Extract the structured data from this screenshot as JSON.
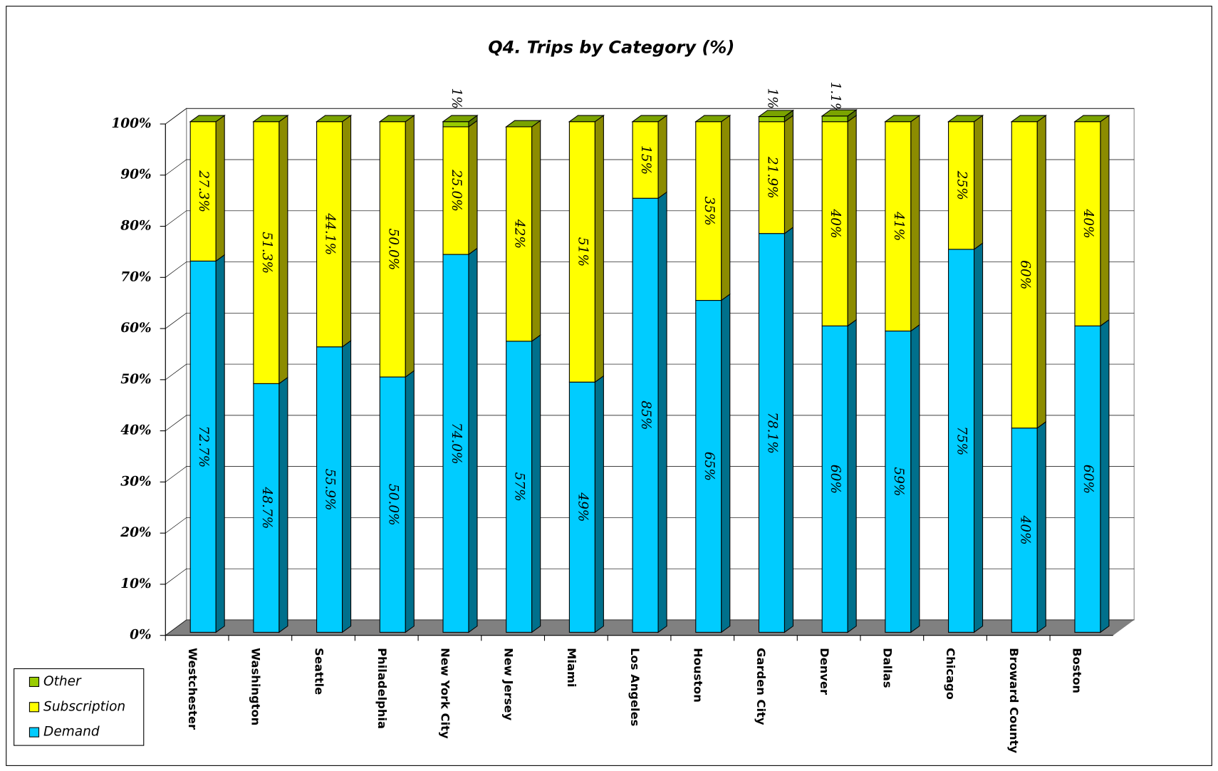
{
  "chart_data": {
    "type": "bar",
    "stacked": true,
    "title": "Q4. Trips by Category (%)",
    "categories": [
      "Westchester",
      "Washington",
      "Seattle",
      "Philadelphia",
      "New York City",
      "New Jersey",
      "Miami",
      "Los Angeles",
      "Houston",
      "Garden City",
      "Denver",
      "Dallas",
      "Chicago",
      "Broward County",
      "Boston"
    ],
    "series": [
      {
        "name": "Demand",
        "color": "#00ccff",
        "values": [
          72.7,
          48.7,
          55.9,
          50.0,
          74.0,
          57,
          49,
          85,
          65,
          78.1,
          60,
          59,
          75,
          40,
          60
        ],
        "value_labels": [
          "72.7%",
          "48.7%",
          "55.9%",
          "50.0%",
          "74.0%",
          "57%",
          "49%",
          "85%",
          "65%",
          "78.1%",
          "60%",
          "59%",
          "75%",
          "40%",
          "60%"
        ]
      },
      {
        "name": "Subscription",
        "color": "#ffff00",
        "values": [
          27.3,
          51.3,
          44.1,
          50.0,
          25.0,
          42,
          51,
          15,
          35,
          21.9,
          40,
          41,
          25,
          60,
          40
        ],
        "value_labels": [
          "27.3%",
          "51.3%",
          "44.1%",
          "50.0%",
          "25.0%",
          "42%",
          "51%",
          "15%",
          "35%",
          "21.9%",
          "40%",
          "41%",
          "25%",
          "60%",
          "40%"
        ]
      },
      {
        "name": "Other",
        "color": "#99cc00",
        "values": [
          null,
          null,
          null,
          null,
          1,
          null,
          null,
          null,
          null,
          1,
          1.1,
          null,
          null,
          null,
          null
        ],
        "value_labels": [
          null,
          null,
          null,
          null,
          "1%",
          null,
          null,
          null,
          null,
          "1%",
          "1.1%",
          null,
          null,
          null,
          null
        ]
      }
    ],
    "ylim": [
      0,
      100
    ],
    "yticks": [
      {
        "value": 0,
        "label": "0%"
      },
      {
        "value": 10,
        "label": "10%"
      },
      {
        "value": 20,
        "label": "20%"
      },
      {
        "value": 30,
        "label": "30%"
      },
      {
        "value": 40,
        "label": "40%"
      },
      {
        "value": 50,
        "label": "50%"
      },
      {
        "value": 60,
        "label": "60%"
      },
      {
        "value": 70,
        "label": "70%"
      },
      {
        "value": 80,
        "label": "80%"
      },
      {
        "value": 90,
        "label": "90%"
      },
      {
        "value": 100,
        "label": "100%"
      }
    ],
    "grid": true,
    "legend": "lower left"
  }
}
